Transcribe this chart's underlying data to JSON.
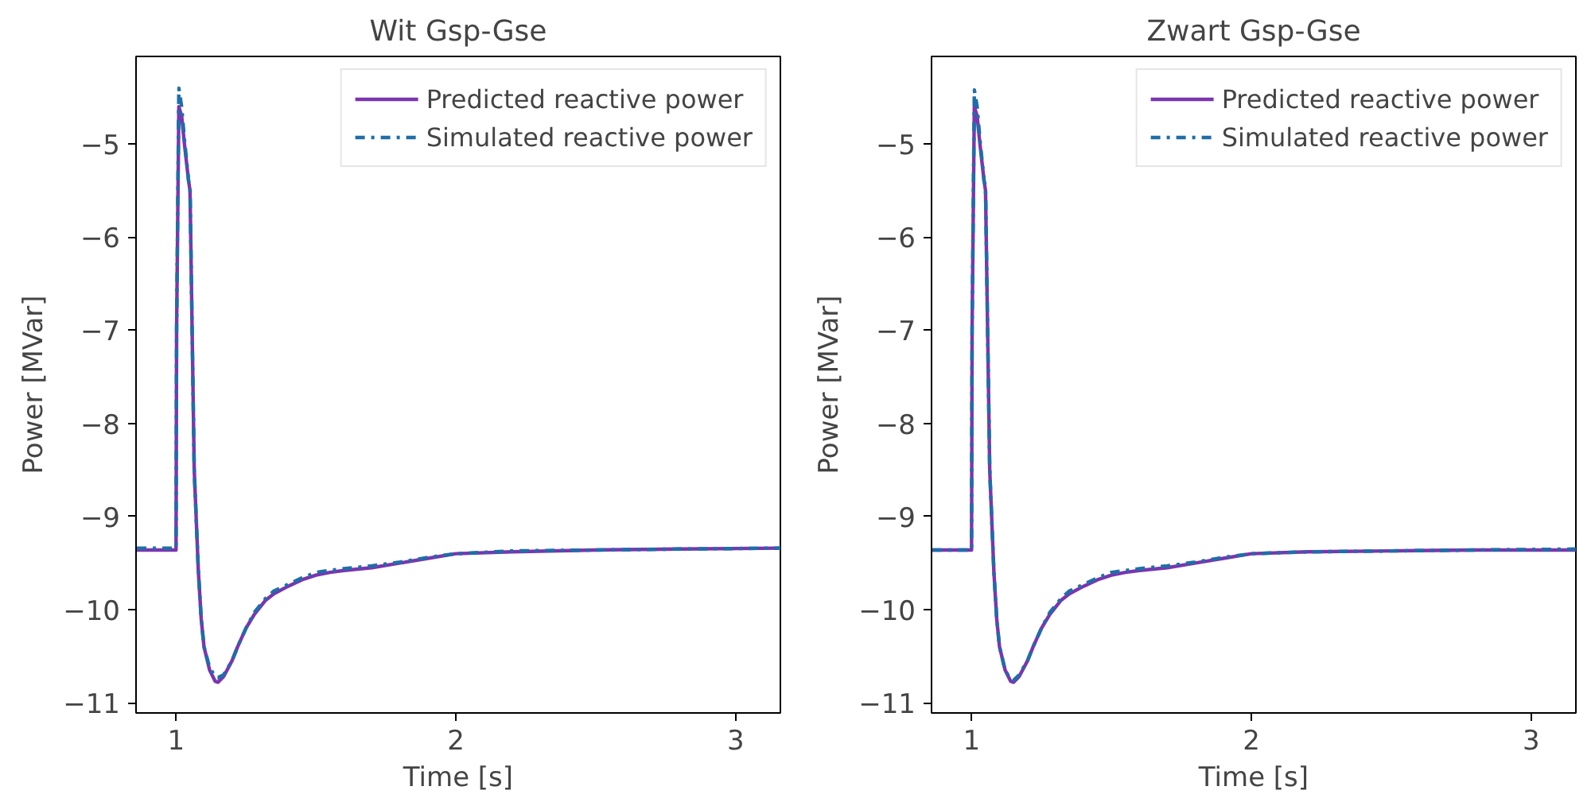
{
  "chart_data": [
    {
      "type": "line",
      "title": "Wit Gsp-Gse",
      "xlabel": "Time [s]",
      "ylabel": "Power [MVar]",
      "xlim": [
        0.857,
        3.16
      ],
      "ylim": [
        -11.11,
        -4.06
      ],
      "xticks": [
        1,
        2,
        3
      ],
      "yticks": [
        -11,
        -10,
        -9,
        -8,
        -7,
        -6,
        -5
      ],
      "grid": false,
      "legend": "top right",
      "series": [
        {
          "name": "Predicted reactive power",
          "color": "#7b35b0",
          "line_style": "solid",
          "x": [
            0.86,
            1.0,
            1.002,
            1.01,
            1.02,
            1.03,
            1.045,
            1.05,
            1.055,
            1.065,
            1.08,
            1.09,
            1.1,
            1.12,
            1.14,
            1.15,
            1.17,
            1.2,
            1.22,
            1.25,
            1.28,
            1.32,
            1.35,
            1.4,
            1.45,
            1.5,
            1.55,
            1.6,
            1.7,
            1.8,
            1.9,
            2.0,
            2.2,
            2.5,
            2.8,
            3.16
          ],
          "values": [
            -9.36,
            -9.36,
            -7.0,
            -4.6,
            -4.7,
            -5.0,
            -5.4,
            -5.5,
            -6.5,
            -8.5,
            -9.6,
            -10.1,
            -10.4,
            -10.65,
            -10.77,
            -10.78,
            -10.72,
            -10.55,
            -10.4,
            -10.2,
            -10.05,
            -9.9,
            -9.83,
            -9.75,
            -9.68,
            -9.63,
            -9.6,
            -9.58,
            -9.55,
            -9.5,
            -9.45,
            -9.4,
            -9.38,
            -9.36,
            -9.35,
            -9.34
          ]
        },
        {
          "name": "Simulated reactive power",
          "color": "#1f6ea8",
          "line_style": "dashdot",
          "x": [
            0.86,
            1.0,
            1.002,
            1.01,
            1.02,
            1.03,
            1.045,
            1.05,
            1.055,
            1.065,
            1.08,
            1.09,
            1.1,
            1.12,
            1.14,
            1.15,
            1.17,
            1.2,
            1.22,
            1.25,
            1.28,
            1.32,
            1.35,
            1.4,
            1.45,
            1.5,
            1.55,
            1.6,
            1.7,
            1.8,
            1.9,
            2.0,
            2.2,
            2.5,
            2.8,
            3.16
          ],
          "values": [
            -9.34,
            -9.34,
            -7.0,
            -4.4,
            -4.6,
            -4.95,
            -5.4,
            -5.45,
            -6.5,
            -8.5,
            -9.6,
            -10.1,
            -10.4,
            -10.62,
            -10.72,
            -10.73,
            -10.7,
            -10.55,
            -10.4,
            -10.2,
            -10.03,
            -9.88,
            -9.8,
            -9.73,
            -9.66,
            -9.6,
            -9.58,
            -9.56,
            -9.53,
            -9.49,
            -9.44,
            -9.4,
            -9.37,
            -9.36,
            -9.35,
            -9.34
          ]
        }
      ]
    },
    {
      "type": "line",
      "title": "Zwart Gsp-Gse",
      "xlabel": "Time [s]",
      "ylabel": "Power [MVar]",
      "xlim": [
        0.857,
        3.16
      ],
      "ylim": [
        -11.11,
        -4.06
      ],
      "xticks": [
        1,
        2,
        3
      ],
      "yticks": [
        -11,
        -10,
        -9,
        -8,
        -7,
        -6,
        -5
      ],
      "grid": false,
      "legend": "top right",
      "series": [
        {
          "name": "Predicted reactive power",
          "color": "#7b35b0",
          "line_style": "solid",
          "x": [
            0.86,
            1.0,
            1.002,
            1.01,
            1.02,
            1.03,
            1.045,
            1.05,
            1.055,
            1.065,
            1.08,
            1.09,
            1.1,
            1.12,
            1.14,
            1.15,
            1.17,
            1.2,
            1.22,
            1.25,
            1.28,
            1.32,
            1.35,
            1.4,
            1.45,
            1.5,
            1.55,
            1.6,
            1.7,
            1.8,
            1.9,
            2.0,
            2.2,
            2.5,
            2.8,
            3.16
          ],
          "values": [
            -9.36,
            -9.36,
            -7.0,
            -4.6,
            -4.7,
            -5.0,
            -5.4,
            -5.5,
            -6.5,
            -8.5,
            -9.6,
            -10.1,
            -10.4,
            -10.65,
            -10.77,
            -10.78,
            -10.72,
            -10.55,
            -10.4,
            -10.2,
            -10.05,
            -9.9,
            -9.83,
            -9.75,
            -9.68,
            -9.63,
            -9.6,
            -9.58,
            -9.55,
            -9.5,
            -9.45,
            -9.4,
            -9.38,
            -9.37,
            -9.36,
            -9.36
          ]
        },
        {
          "name": "Simulated reactive power",
          "color": "#1f6ea8",
          "line_style": "dashdot",
          "x": [
            0.86,
            1.0,
            1.002,
            1.01,
            1.02,
            1.03,
            1.045,
            1.05,
            1.055,
            1.065,
            1.08,
            1.09,
            1.1,
            1.12,
            1.14,
            1.15,
            1.17,
            1.2,
            1.22,
            1.25,
            1.28,
            1.32,
            1.35,
            1.4,
            1.45,
            1.5,
            1.55,
            1.6,
            1.7,
            1.8,
            1.9,
            2.0,
            2.2,
            2.5,
            2.8,
            3.16
          ],
          "values": [
            -9.36,
            -9.36,
            -7.0,
            -4.42,
            -4.6,
            -4.95,
            -5.4,
            -5.45,
            -6.5,
            -8.5,
            -9.6,
            -10.1,
            -10.4,
            -10.65,
            -10.75,
            -10.76,
            -10.7,
            -10.55,
            -10.4,
            -10.2,
            -10.03,
            -9.88,
            -9.8,
            -9.73,
            -9.66,
            -9.6,
            -9.58,
            -9.56,
            -9.53,
            -9.49,
            -9.44,
            -9.4,
            -9.38,
            -9.37,
            -9.36,
            -9.35
          ]
        }
      ]
    }
  ]
}
